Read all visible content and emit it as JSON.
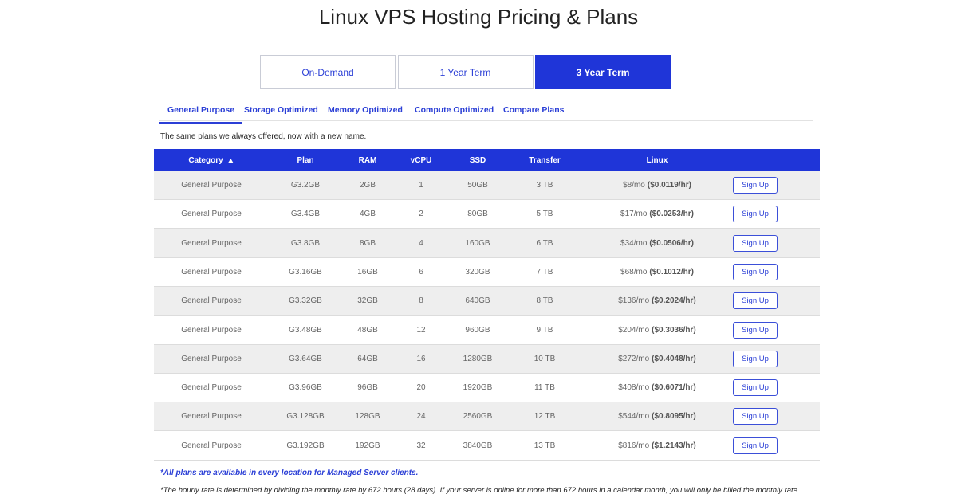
{
  "header": {
    "title": "Linux VPS Hosting Pricing & Plans"
  },
  "term_tabs": {
    "items": [
      "On-Demand",
      "1 Year Term",
      "3 Year Term"
    ],
    "active": 2
  },
  "category_tabs": {
    "items": [
      "General Purpose",
      "Storage Optimized",
      "Memory Optimized",
      "Compute Optimized",
      "Compare Plans"
    ],
    "active": 0
  },
  "note": "The same plans we always offered, now with a new name.",
  "table": {
    "columns": [
      "Category",
      "Plan",
      "RAM",
      "vCPU",
      "SSD",
      "Transfer",
      "Linux"
    ],
    "sort_column": 0,
    "rows": [
      [
        "General Purpose",
        "G3.2GB",
        "2GB",
        "1",
        "50GB",
        "3 TB",
        "$8/mo",
        "($0.0119/hr)",
        "Sign Up"
      ],
      [
        "General Purpose",
        "G3.4GB",
        "4GB",
        "2",
        "80GB",
        "5 TB",
        "$17/mo",
        "($0.0253/hr)",
        "Sign Up"
      ],
      [
        "General Purpose",
        "G3.8GB",
        "8GB",
        "4",
        "160GB",
        "6 TB",
        "$34/mo",
        "($0.0506/hr)",
        "Sign Up"
      ],
      [
        "General Purpose",
        "G3.16GB",
        "16GB",
        "6",
        "320GB",
        "7 TB",
        "$68/mo",
        "($0.1012/hr)",
        "Sign Up"
      ],
      [
        "General Purpose",
        "G3.32GB",
        "32GB",
        "8",
        "640GB",
        "8 TB",
        "$136/mo",
        "($0.2024/hr)",
        "Sign Up"
      ],
      [
        "General Purpose",
        "G3.48GB",
        "48GB",
        "12",
        "960GB",
        "9 TB",
        "$204/mo",
        "($0.3036/hr)",
        "Sign Up"
      ],
      [
        "General Purpose",
        "G3.64GB",
        "64GB",
        "16",
        "1280GB",
        "10 TB",
        "$272/mo",
        "($0.4048/hr)",
        "Sign Up"
      ],
      [
        "General Purpose",
        "G3.96GB",
        "96GB",
        "20",
        "1920GB",
        "11 TB",
        "$408/mo",
        "($0.6071/hr)",
        "Sign Up"
      ],
      [
        "General Purpose",
        "G3.128GB",
        "128GB",
        "24",
        "2560GB",
        "12 TB",
        "$544/mo",
        "($0.8095/hr)",
        "Sign Up"
      ],
      [
        "General Purpose",
        "G3.192GB",
        "192GB",
        "32",
        "3840GB",
        "13 TB",
        "$816/mo",
        "($1.2143/hr)",
        "Sign Up"
      ]
    ]
  },
  "footnotes": [
    "*All plans are available in every location for Managed Server clients.",
    "*The hourly rate is determined by dividing the monthly rate by 672 hours (28 days). If your server is online for more than 672 hours in a calendar month, you will only be billed the monthly rate."
  ]
}
